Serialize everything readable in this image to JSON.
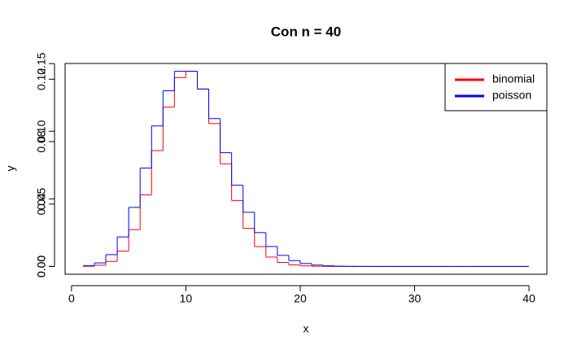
{
  "chart_data": {
    "type": "step",
    "title": "Con n = 40",
    "x_label": "x",
    "y_label": "y",
    "x": [
      1,
      2,
      3,
      4,
      5,
      6,
      7,
      8,
      9,
      10,
      11,
      12,
      13,
      14,
      15,
      16,
      17,
      18,
      19,
      20,
      21,
      22,
      23,
      24,
      25,
      26,
      27,
      28,
      29,
      30,
      31,
      32,
      33,
      34,
      35,
      36,
      37,
      38,
      39,
      40
    ],
    "series": [
      {
        "name": "binomial",
        "color": "#ff0000",
        "axis": "y2",
        "values": [
          0.000134,
          0.000871,
          0.003678,
          0.01134,
          0.027216,
          0.05292,
          0.08568,
          0.11781,
          0.139626,
          0.14428,
          0.131164,
          0.10566,
          0.075858,
          0.048766,
          0.028176,
          0.014675,
          0.006906,
          0.002941,
          0.001135,
          0.000397,
          0.000126,
          3.6e-05,
          1e-05,
          2e-06,
          0,
          0,
          0,
          0,
          0,
          0,
          0,
          0,
          0,
          0,
          0,
          0,
          0,
          0,
          0,
          0
        ]
      },
      {
        "name": "poisson",
        "color": "#0000ff",
        "values": [
          0.000454,
          0.00227,
          0.007567,
          0.018917,
          0.037833,
          0.063055,
          0.090079,
          0.112599,
          0.12511,
          0.12511,
          0.113736,
          0.09478,
          0.072908,
          0.052077,
          0.034718,
          0.021699,
          0.012764,
          0.007091,
          0.003732,
          0.001866,
          0.000889,
          0.000404,
          0.000176,
          7.3e-05,
          2.9e-05,
          1.1e-05,
          4e-06,
          1e-06,
          0,
          0,
          0,
          0,
          0,
          0,
          0,
          0,
          0,
          0,
          0,
          0
        ]
      }
    ],
    "xlim": [
      -0.56,
      41.56
    ],
    "xticks": [
      0,
      10,
      20,
      30,
      40
    ],
    "ylim": [
      -0.005,
      0.1301
    ],
    "yticks": [
      {
        "value": 0,
        "label": "0.00"
      },
      {
        "value": 0.04,
        "label": "0.04"
      },
      {
        "value": 0.08,
        "label": "0.08"
      },
      {
        "value": 0.12,
        "label": "0.12"
      }
    ],
    "y2lim": [
      -0.00578,
      0.1501
    ],
    "y2ticks": [
      {
        "value": 0,
        "label": "0.00"
      },
      {
        "value": 0.05,
        "label": "0.05"
      },
      {
        "value": 0.1,
        "label": "0.10"
      },
      {
        "value": 0.15,
        "label": "0.15"
      }
    ],
    "legend": "topright"
  }
}
